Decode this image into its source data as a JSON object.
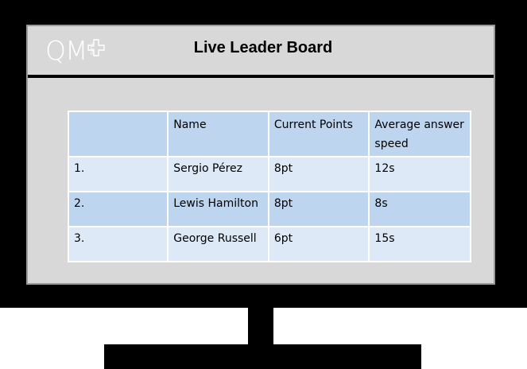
{
  "header": {
    "logo_text": "QM",
    "logo_sub": "PLUS",
    "title": "Live Leader Board"
  },
  "table": {
    "columns": [
      "",
      "Name",
      "Current Points",
      "Average answer speed"
    ],
    "rows": [
      {
        "rank": "1.",
        "name": "Sergio Pérez",
        "points": "8pt",
        "speed": "12s"
      },
      {
        "rank": "2.",
        "name": "Lewis Hamilton",
        "points": "8pt",
        "speed": "8s"
      },
      {
        "rank": "3.",
        "name": "George Russell",
        "points": "6pt",
        "speed": "15s"
      }
    ]
  },
  "colors": {
    "bezel": "#000000",
    "screen": "#d8d8d8",
    "header_cell": "#bdd5ee",
    "row_light": "#dde9f6",
    "row_dark": "#bdd5ee"
  }
}
